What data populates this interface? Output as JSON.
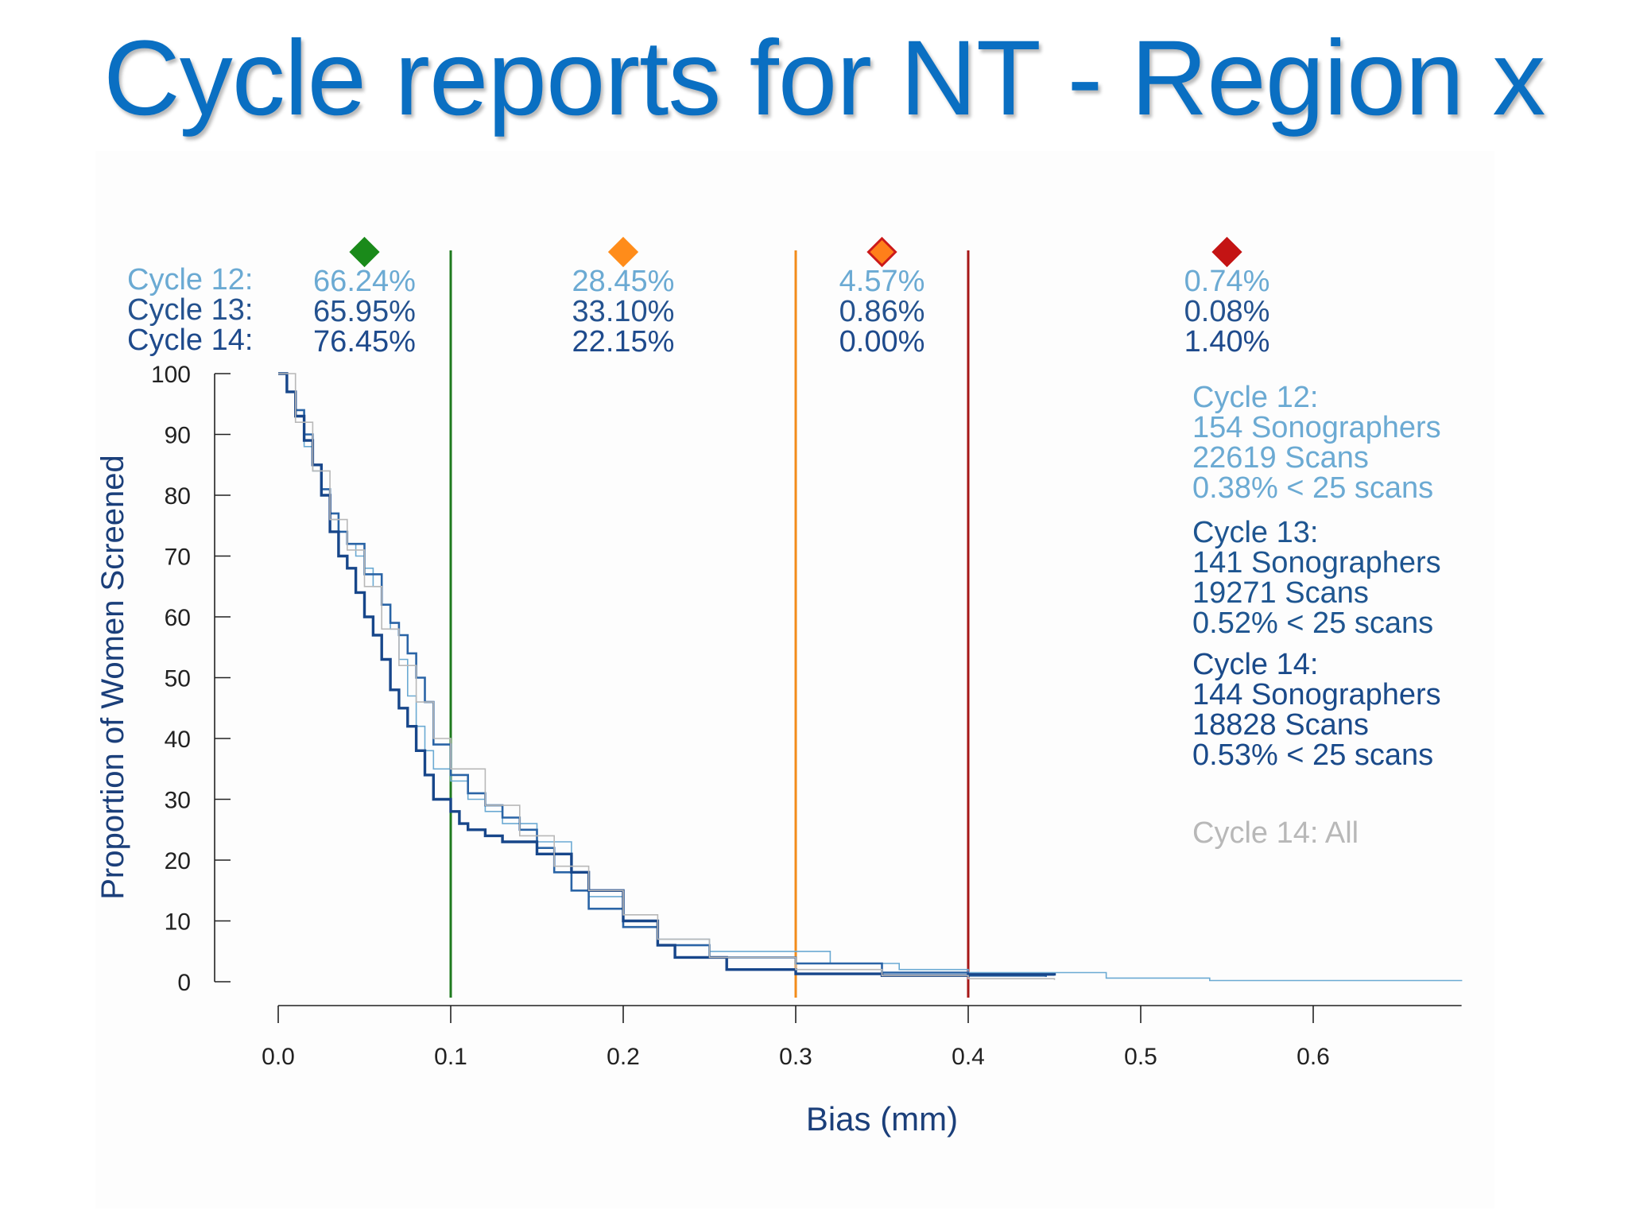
{
  "slide": {
    "title": "Cycle reports for NT - Region x"
  },
  "chart_data": {
    "type": "line",
    "step": true,
    "xlabel": "Bias (mm)",
    "ylabel": "Proportion of Women Screened",
    "xlim": [
      0.0,
      0.686
    ],
    "ylim": [
      0,
      100
    ],
    "x_ticks": [
      "0.0",
      "0.1",
      "0.2",
      "0.3",
      "0.4",
      "0.5",
      "0.6"
    ],
    "y_ticks": [
      "0",
      "10",
      "20",
      "30",
      "40",
      "50",
      "60",
      "70",
      "80",
      "90",
      "100"
    ],
    "thresholds": [
      {
        "x": 0.1,
        "color": "#1f7a1f"
      },
      {
        "x": 0.3,
        "color": "#f28c1a"
      },
      {
        "x": 0.4,
        "color": "#a61717"
      }
    ],
    "band_summary": {
      "row_labels": [
        "Cycle 12:",
        "Cycle 13:",
        "Cycle 14:"
      ],
      "row_colors": [
        "#6baad3",
        "#24528f",
        "#1e4a8c"
      ],
      "bands": [
        {
          "marker_color": "#1a8a1a",
          "marker_outline": "#1a8a1a",
          "marker_x": 0.05,
          "values": [
            "66.24%",
            "65.95%",
            "76.45%"
          ]
        },
        {
          "marker_color": "#ff8c1a",
          "marker_outline": "#ff8c1a",
          "marker_x": 0.2,
          "values": [
            "28.45%",
            "33.10%",
            "22.15%"
          ]
        },
        {
          "marker_color": "#ff7f1a",
          "marker_outline": "#cc1a1a",
          "marker_x": 0.35,
          "values": [
            "4.57%",
            "0.86%",
            "0.00%"
          ]
        },
        {
          "marker_color": "#c41414",
          "marker_outline": "#c41414",
          "marker_x": 0.55,
          "values": [
            "0.74%",
            "0.08%",
            "1.40%"
          ]
        }
      ]
    },
    "legend_blocks": [
      {
        "color": "#6baad3",
        "lines": [
          "Cycle 12:",
          "154 Sonographers",
          "22619 Scans",
          "0.38% < 25 scans"
        ]
      },
      {
        "color": "#1e5590",
        "lines": [
          "Cycle 13:",
          "141 Sonographers",
          "19271 Scans",
          "0.52% < 25 scans"
        ]
      },
      {
        "color": "#1a4a8a",
        "lines": [
          "Cycle 14:",
          "144 Sonographers",
          "18828 Scans",
          "0.53% < 25 scans"
        ]
      },
      {
        "color": "#b8b8b8",
        "lines": [
          "Cycle 14: All"
        ]
      }
    ],
    "series": [
      {
        "name": "Cycle 12",
        "color": "#6baad3",
        "width": 1.6,
        "x": [
          0.0,
          0.005,
          0.01,
          0.015,
          0.02,
          0.025,
          0.03,
          0.035,
          0.04,
          0.045,
          0.05,
          0.055,
          0.06,
          0.065,
          0.07,
          0.075,
          0.08,
          0.085,
          0.09,
          0.1,
          0.11,
          0.12,
          0.13,
          0.15,
          0.17,
          0.18,
          0.2,
          0.22,
          0.25,
          0.3,
          0.32,
          0.36,
          0.4,
          0.48,
          0.54,
          0.686
        ],
        "y": [
          100,
          97,
          93,
          88,
          84,
          80,
          76,
          74,
          72,
          70,
          68,
          65,
          62,
          58,
          53,
          47,
          42,
          38,
          35,
          33,
          30,
          28,
          26,
          23,
          18,
          14,
          10,
          7,
          5,
          5,
          3,
          2,
          1.5,
          0.6,
          0.2,
          0.1
        ]
      },
      {
        "name": "Cycle 13",
        "color": "#2a64a6",
        "width": 2.6,
        "x": [
          0.0,
          0.005,
          0.01,
          0.015,
          0.02,
          0.025,
          0.03,
          0.035,
          0.04,
          0.05,
          0.06,
          0.065,
          0.07,
          0.075,
          0.08,
          0.085,
          0.09,
          0.1,
          0.11,
          0.12,
          0.13,
          0.14,
          0.15,
          0.16,
          0.17,
          0.18,
          0.2,
          0.22,
          0.25,
          0.3,
          0.35,
          0.4,
          0.445
        ],
        "y": [
          100,
          97,
          94,
          90,
          85,
          81,
          77,
          74,
          72,
          67,
          62,
          59,
          57,
          54,
          50,
          46,
          39,
          34,
          31,
          29,
          27,
          25,
          22,
          18,
          15,
          12,
          9,
          6,
          4,
          3,
          1.5,
          1.0,
          0.8
        ]
      },
      {
        "name": "Cycle 14",
        "color": "#17468a",
        "width": 3.4,
        "x": [
          0.0,
          0.005,
          0.01,
          0.015,
          0.02,
          0.025,
          0.03,
          0.035,
          0.04,
          0.045,
          0.05,
          0.055,
          0.06,
          0.065,
          0.07,
          0.075,
          0.08,
          0.085,
          0.09,
          0.1,
          0.105,
          0.11,
          0.12,
          0.13,
          0.15,
          0.17,
          0.18,
          0.2,
          0.22,
          0.23,
          0.26,
          0.3,
          0.35,
          0.4,
          0.45
        ],
        "y": [
          100,
          97,
          93,
          89,
          85,
          80,
          74,
          70,
          68,
          64,
          60,
          57,
          53,
          48,
          45,
          42,
          38,
          34,
          30,
          28,
          26,
          25,
          24,
          23,
          21,
          18,
          15,
          10,
          6,
          4,
          2,
          1.3,
          1.0,
          1.2,
          1.0
        ]
      },
      {
        "name": "Cycle 14: All",
        "color": "#b8b8b8",
        "width": 1.6,
        "x": [
          0.0,
          0.01,
          0.02,
          0.03,
          0.04,
          0.05,
          0.06,
          0.07,
          0.08,
          0.09,
          0.1,
          0.12,
          0.14,
          0.16,
          0.18,
          0.2,
          0.22,
          0.25,
          0.3,
          0.35,
          0.4,
          0.45
        ],
        "y": [
          100,
          92,
          84,
          76,
          71,
          65,
          58,
          52,
          46,
          40,
          35,
          29,
          24,
          19,
          15,
          11,
          7,
          4,
          2,
          1,
          0.5,
          0.3
        ]
      }
    ]
  }
}
